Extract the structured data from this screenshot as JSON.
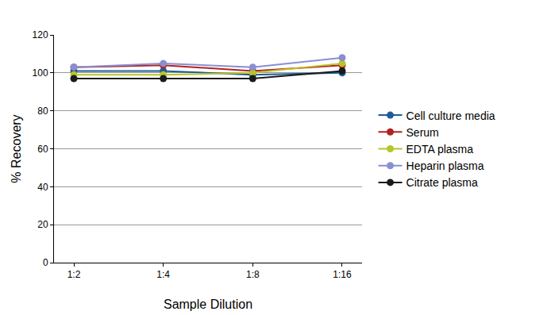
{
  "chart_data": {
    "type": "line",
    "x_label": "Sample Dilution",
    "y_label": "% Recovery",
    "categories": [
      "1:2",
      "1:4",
      "1:8",
      "1:16"
    ],
    "series": [
      {
        "name": "Cell culture media",
        "color": "#1f5c99",
        "values": [
          101,
          101,
          99,
          100
        ]
      },
      {
        "name": "Serum",
        "color": "#b22222",
        "values": [
          103,
          104,
          101,
          104
        ]
      },
      {
        "name": "EDTA plasma",
        "color": "#b8c528",
        "values": [
          99,
          99,
          100,
          105
        ]
      },
      {
        "name": "Heparin plasma",
        "color": "#8a8fd2",
        "values": [
          103,
          105,
          103,
          108
        ]
      },
      {
        "name": "Citrate plasma",
        "color": "#1a1a1a",
        "values": [
          97,
          97,
          97,
          101
        ]
      }
    ],
    "ylim": [
      0,
      120
    ],
    "yticks": [
      0,
      20,
      40,
      60,
      80,
      100,
      120
    ],
    "grid": true,
    "legend": "right",
    "marker": "circle"
  }
}
